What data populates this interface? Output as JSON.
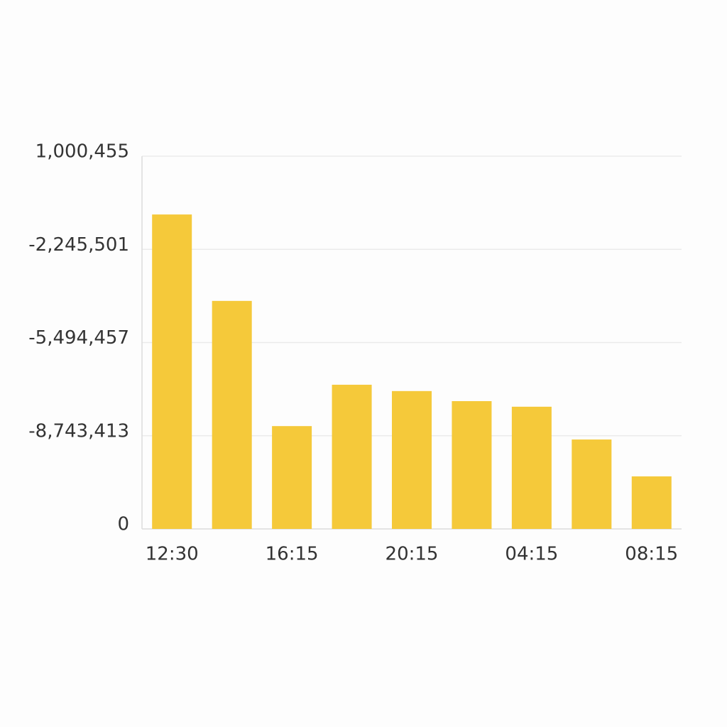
{
  "chart_data": {
    "type": "bar",
    "categories": [
      "12:30",
      null,
      "16:15",
      null,
      "20:15",
      null,
      "04:15",
      null,
      "08:15"
    ],
    "values": [
      844000,
      612000,
      276000,
      387000,
      370000,
      343000,
      328000,
      240000,
      141000
    ],
    "color": "#f5c93a",
    "ylim": [
      0,
      1000455
    ],
    "yticks": [
      0,
      {
        "value": -8743413,
        "label": "-8,743,413"
      },
      {
        "value": -5494457,
        "label": "-5,494,457"
      },
      {
        "value": -2245501,
        "label": "-2,245,501"
      },
      {
        "value": 1000455,
        "label": "1,000,455"
      }
    ],
    "grid": true
  }
}
